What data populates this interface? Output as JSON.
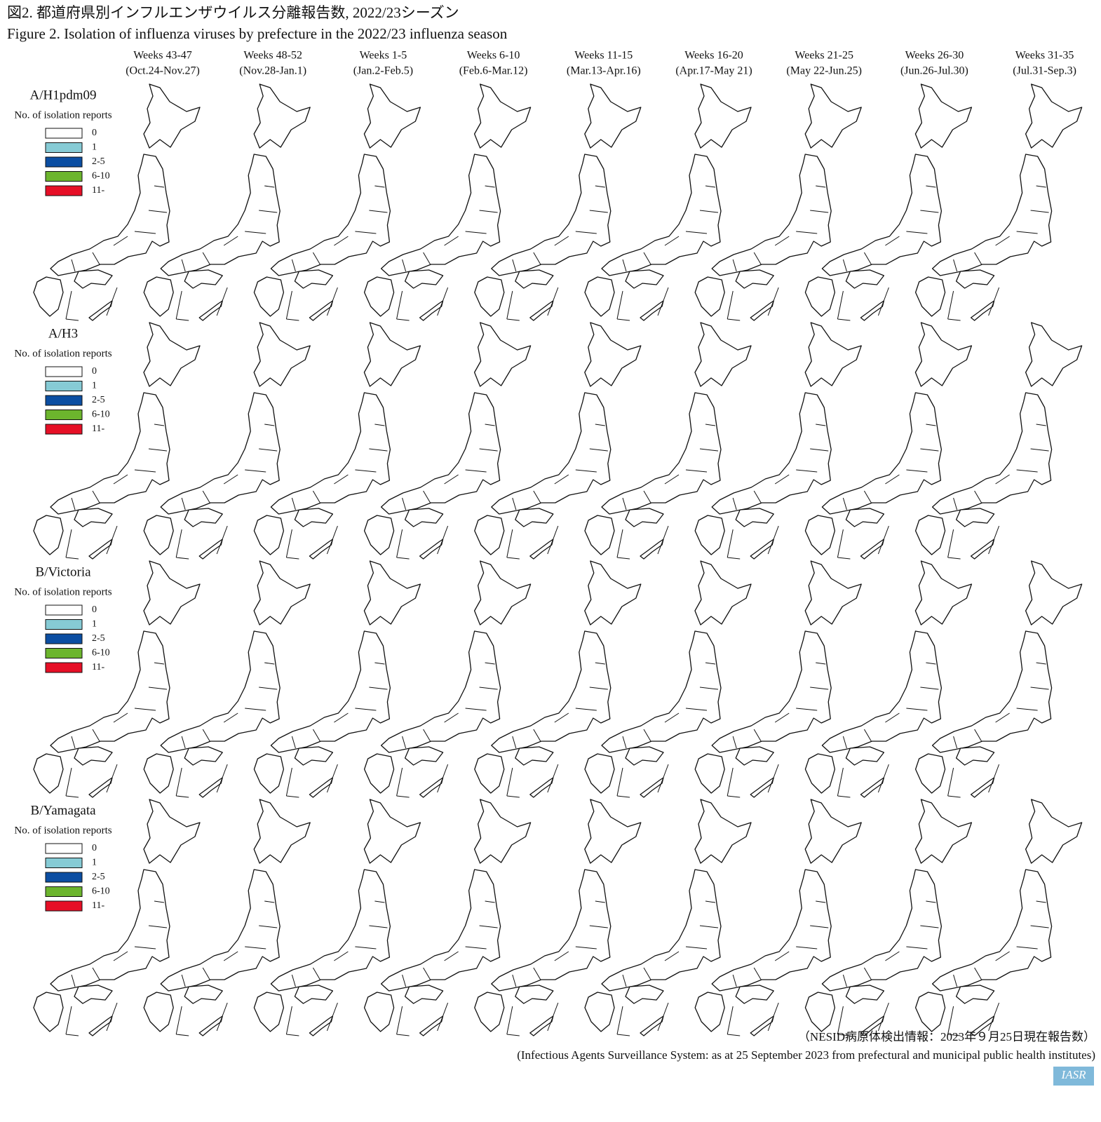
{
  "header": {
    "title_ja": "図2. 都道府県別インフルエンザウイルス分離報告数, 2022/23シーズン",
    "title_en": "Figure 2. Isolation of influenza viruses by prefecture in the 2022/23 influenza season"
  },
  "columns": [
    {
      "weeks": "Weeks 43-47",
      "dates": "(Oct.24-Nov.27)"
    },
    {
      "weeks": "Weeks 48-52",
      "dates": "(Nov.28-Jan.1)"
    },
    {
      "weeks": "Weeks 1-5",
      "dates": "(Jan.2-Feb.5)"
    },
    {
      "weeks": "Weeks 6-10",
      "dates": "(Feb.6-Mar.12)"
    },
    {
      "weeks": "Weeks 11-15",
      "dates": "(Mar.13-Apr.16)"
    },
    {
      "weeks": "Weeks 16-20",
      "dates": "(Apr.17-May 21)"
    },
    {
      "weeks": "Weeks 21-25",
      "dates": "(May 22-Jun.25)"
    },
    {
      "weeks": "Weeks 26-30",
      "dates": "(Jun.26-Jul.30)"
    },
    {
      "weeks": "Weeks 31-35",
      "dates": "(Jul.31-Sep.3)"
    }
  ],
  "rows": [
    {
      "label": "A/H1pdm09"
    },
    {
      "label": "A/H3"
    },
    {
      "label": "B/Victoria"
    },
    {
      "label": "B/Yamagata"
    }
  ],
  "legend": {
    "title": "No. of isolation reports",
    "items": [
      {
        "label": "0",
        "color": "#ffffff"
      },
      {
        "label": "1",
        "color": "#86cbd5"
      },
      {
        "label": "2-5",
        "color": "#0b4ea2"
      },
      {
        "label": "6-10",
        "color": "#6cb52d"
      },
      {
        "label": "11-",
        "color": "#e60f26"
      }
    ]
  },
  "footer": {
    "source_ja": "（NESID病原体検出情報：2023年９月25日現在報告数）",
    "source_en": "(Infectious Agents Surveillance System: as at 25 September 2023 from prefectural and municipal public health institutes)",
    "logo": "IASR"
  }
}
